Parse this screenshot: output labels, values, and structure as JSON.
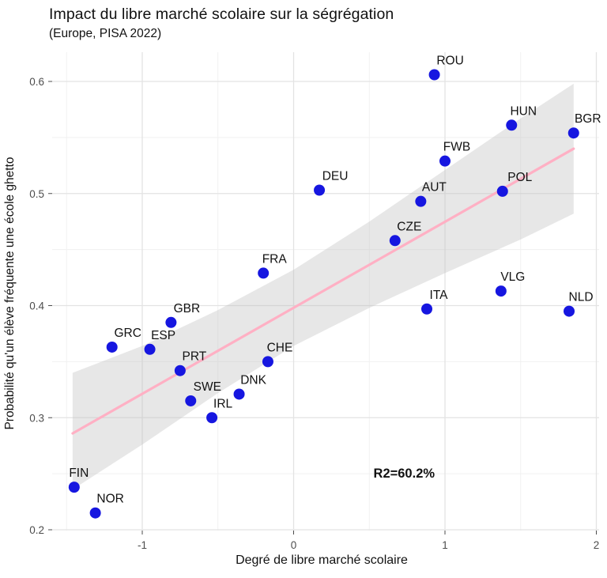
{
  "chart_data": {
    "type": "scatter",
    "title": "Impact du libre marché scolaire sur la ségrégation",
    "subtitle": "(Europe, PISA 2022)",
    "xlabel": "Degré de libre marché scolaire",
    "ylabel": "Probabilité qu'un élève fréquente une école ghetto",
    "xlim": [
      -1.6,
      2.02
    ],
    "ylim": [
      0.199,
      0.626
    ],
    "x_ticks": [
      -1,
      0,
      1,
      2
    ],
    "x_tick_labels": [
      "-1",
      "0",
      "1",
      "2"
    ],
    "x_minor_ticks": [
      -1.5,
      -0.5,
      0.5,
      1.5
    ],
    "y_ticks": [
      0.2,
      0.3,
      0.4,
      0.5,
      0.6
    ],
    "y_tick_labels": [
      "0.2",
      "0.3",
      "0.4",
      "0.5",
      "0.6"
    ],
    "y_minor_ticks": [
      0.25,
      0.35,
      0.45,
      0.55
    ],
    "grid": true,
    "legend": "none",
    "points": [
      {
        "label": "FIN",
        "x": -1.45,
        "y": 0.238,
        "dx": 6
      },
      {
        "label": "NOR",
        "x": -1.31,
        "y": 0.215,
        "dx": 19
      },
      {
        "label": "GRC",
        "x": -1.2,
        "y": 0.363,
        "dx": 20
      },
      {
        "label": "ESP",
        "x": -0.95,
        "y": 0.361,
        "dx": 17
      },
      {
        "label": "GBR",
        "x": -0.81,
        "y": 0.385,
        "dx": 20
      },
      {
        "label": "PRT",
        "x": -0.75,
        "y": 0.342,
        "dx": 18
      },
      {
        "label": "SWE",
        "x": -0.68,
        "y": 0.315,
        "dx": 21
      },
      {
        "label": "IRL",
        "x": -0.54,
        "y": 0.3,
        "dx": 14
      },
      {
        "label": "DNK",
        "x": -0.36,
        "y": 0.321,
        "dx": 18
      },
      {
        "label": "FRA",
        "x": -0.2,
        "y": 0.429,
        "dx": 14
      },
      {
        "label": "CHE",
        "x": -0.17,
        "y": 0.35,
        "dx": 15
      },
      {
        "label": "DEU",
        "x": 0.17,
        "y": 0.503,
        "dx": 20
      },
      {
        "label": "CZE",
        "x": 0.67,
        "y": 0.458,
        "dx": 18
      },
      {
        "label": "AUT",
        "x": 0.84,
        "y": 0.493,
        "dx": 17
      },
      {
        "label": "ITA",
        "x": 0.88,
        "y": 0.397,
        "dx": 15
      },
      {
        "label": "ROU",
        "x": 0.93,
        "y": 0.606,
        "dx": 20
      },
      {
        "label": "FWB",
        "x": 1.0,
        "y": 0.529,
        "dx": 15
      },
      {
        "label": "VLG",
        "x": 1.37,
        "y": 0.413,
        "dx": 15
      },
      {
        "label": "POL",
        "x": 1.38,
        "y": 0.502,
        "dx": 22
      },
      {
        "label": "HUN",
        "x": 1.44,
        "y": 0.561,
        "dx": 15
      },
      {
        "label": "NLD",
        "x": 1.82,
        "y": 0.395,
        "dx": 15
      },
      {
        "label": "BGR",
        "x": 1.85,
        "y": 0.554,
        "dx": 18
      }
    ],
    "regression": {
      "x_start": -1.46,
      "y_start": 0.286,
      "x_end": 1.85,
      "y_end": 0.54
    },
    "confidence_band": [
      {
        "x": -1.46,
        "lo": 0.236,
        "hi": 0.34
      },
      {
        "x": -1.0,
        "lo": 0.276,
        "hi": 0.364
      },
      {
        "x": -0.5,
        "lo": 0.322,
        "hi": 0.396
      },
      {
        "x": 0.0,
        "lo": 0.364,
        "hi": 0.432
      },
      {
        "x": 0.5,
        "lo": 0.398,
        "hi": 0.475
      },
      {
        "x": 1.0,
        "lo": 0.429,
        "hi": 0.521
      },
      {
        "x": 1.5,
        "lo": 0.459,
        "hi": 0.567
      },
      {
        "x": 1.85,
        "lo": 0.482,
        "hi": 0.598
      }
    ],
    "annotation": {
      "text": "R2=60.2%",
      "x": 0.73,
      "y": 0.2465
    },
    "colors": {
      "point": "#1616E0",
      "trend_line": "#FFB0C4",
      "band": "#BFBFBF",
      "band_opacity": 0.38,
      "grid_major": "#E3E3E3",
      "grid_minor": "#F1F1F1",
      "tick_text": "#4D4D4D",
      "text": "#111111"
    }
  }
}
